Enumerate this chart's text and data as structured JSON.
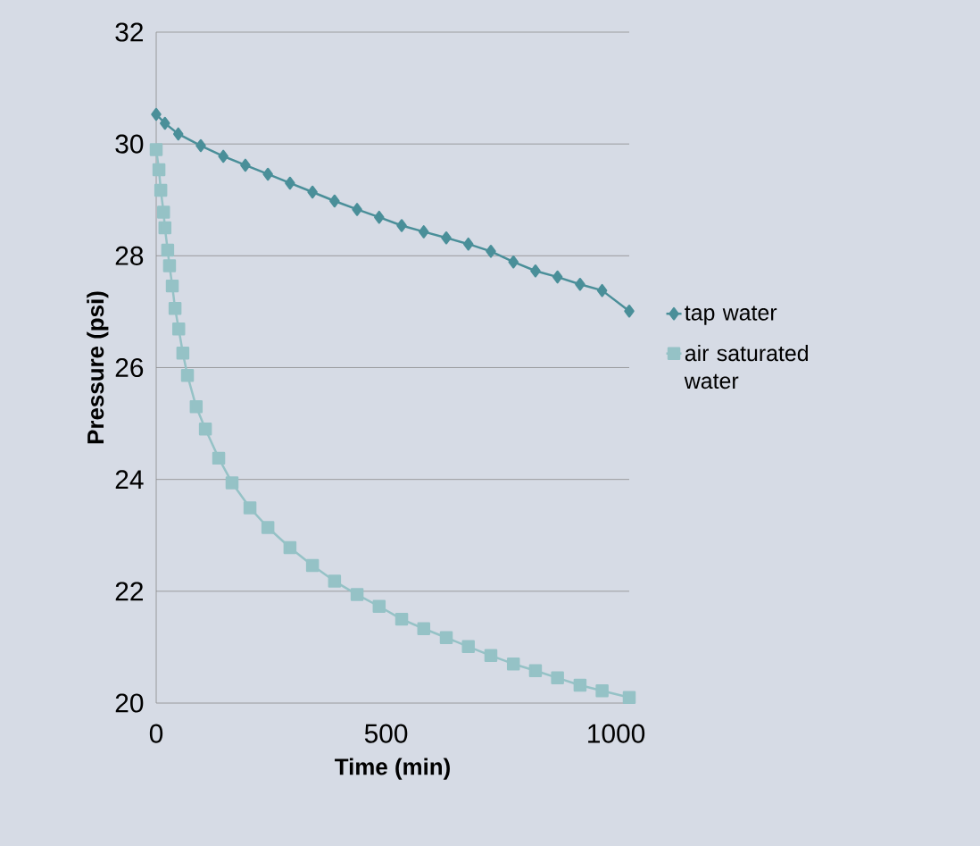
{
  "chart_data": {
    "type": "line",
    "xlabel": "Time (min)",
    "ylabel": "Pressure (psi)",
    "xlim": [
      0,
      1029
    ],
    "ylim": [
      20,
      32
    ],
    "xticks": [
      0,
      500,
      1000
    ],
    "yticks": [
      20,
      22,
      24,
      26,
      28,
      30,
      32
    ],
    "grid": "y",
    "legend": "right",
    "series": [
      {
        "name": "tap water",
        "color": "#4a8f99",
        "marker": "diamond",
        "x": [
          0,
          19,
          48,
          97,
          146,
          194,
          243,
          291,
          340,
          388,
          437,
          485,
          534,
          582,
          631,
          679,
          728,
          777,
          825,
          873,
          922,
          970,
          1029
        ],
        "values": [
          30.53,
          30.37,
          30.18,
          29.97,
          29.78,
          29.62,
          29.46,
          29.3,
          29.14,
          28.98,
          28.83,
          28.69,
          28.54,
          28.43,
          28.32,
          28.21,
          28.08,
          27.89,
          27.73,
          27.62,
          27.49,
          27.38,
          27.01
        ]
      },
      {
        "name": "air saturated water",
        "color": "#95c2c6",
        "marker": "square",
        "x": [
          0,
          6,
          10,
          16,
          19,
          25,
          29,
          35,
          41,
          49,
          58,
          68,
          87,
          107,
          136,
          165,
          204,
          243,
          291,
          340,
          388,
          437,
          485,
          534,
          582,
          631,
          679,
          728,
          777,
          825,
          873,
          922,
          970,
          1029
        ],
        "values": [
          29.9,
          29.54,
          29.17,
          28.78,
          28.5,
          28.1,
          27.82,
          27.46,
          27.06,
          26.69,
          26.26,
          25.86,
          25.3,
          24.9,
          24.38,
          23.94,
          23.49,
          23.14,
          22.78,
          22.46,
          22.18,
          21.94,
          21.73,
          21.5,
          21.33,
          21.17,
          21.01,
          20.85,
          20.7,
          20.58,
          20.45,
          20.32,
          20.22,
          20.1
        ]
      }
    ]
  }
}
